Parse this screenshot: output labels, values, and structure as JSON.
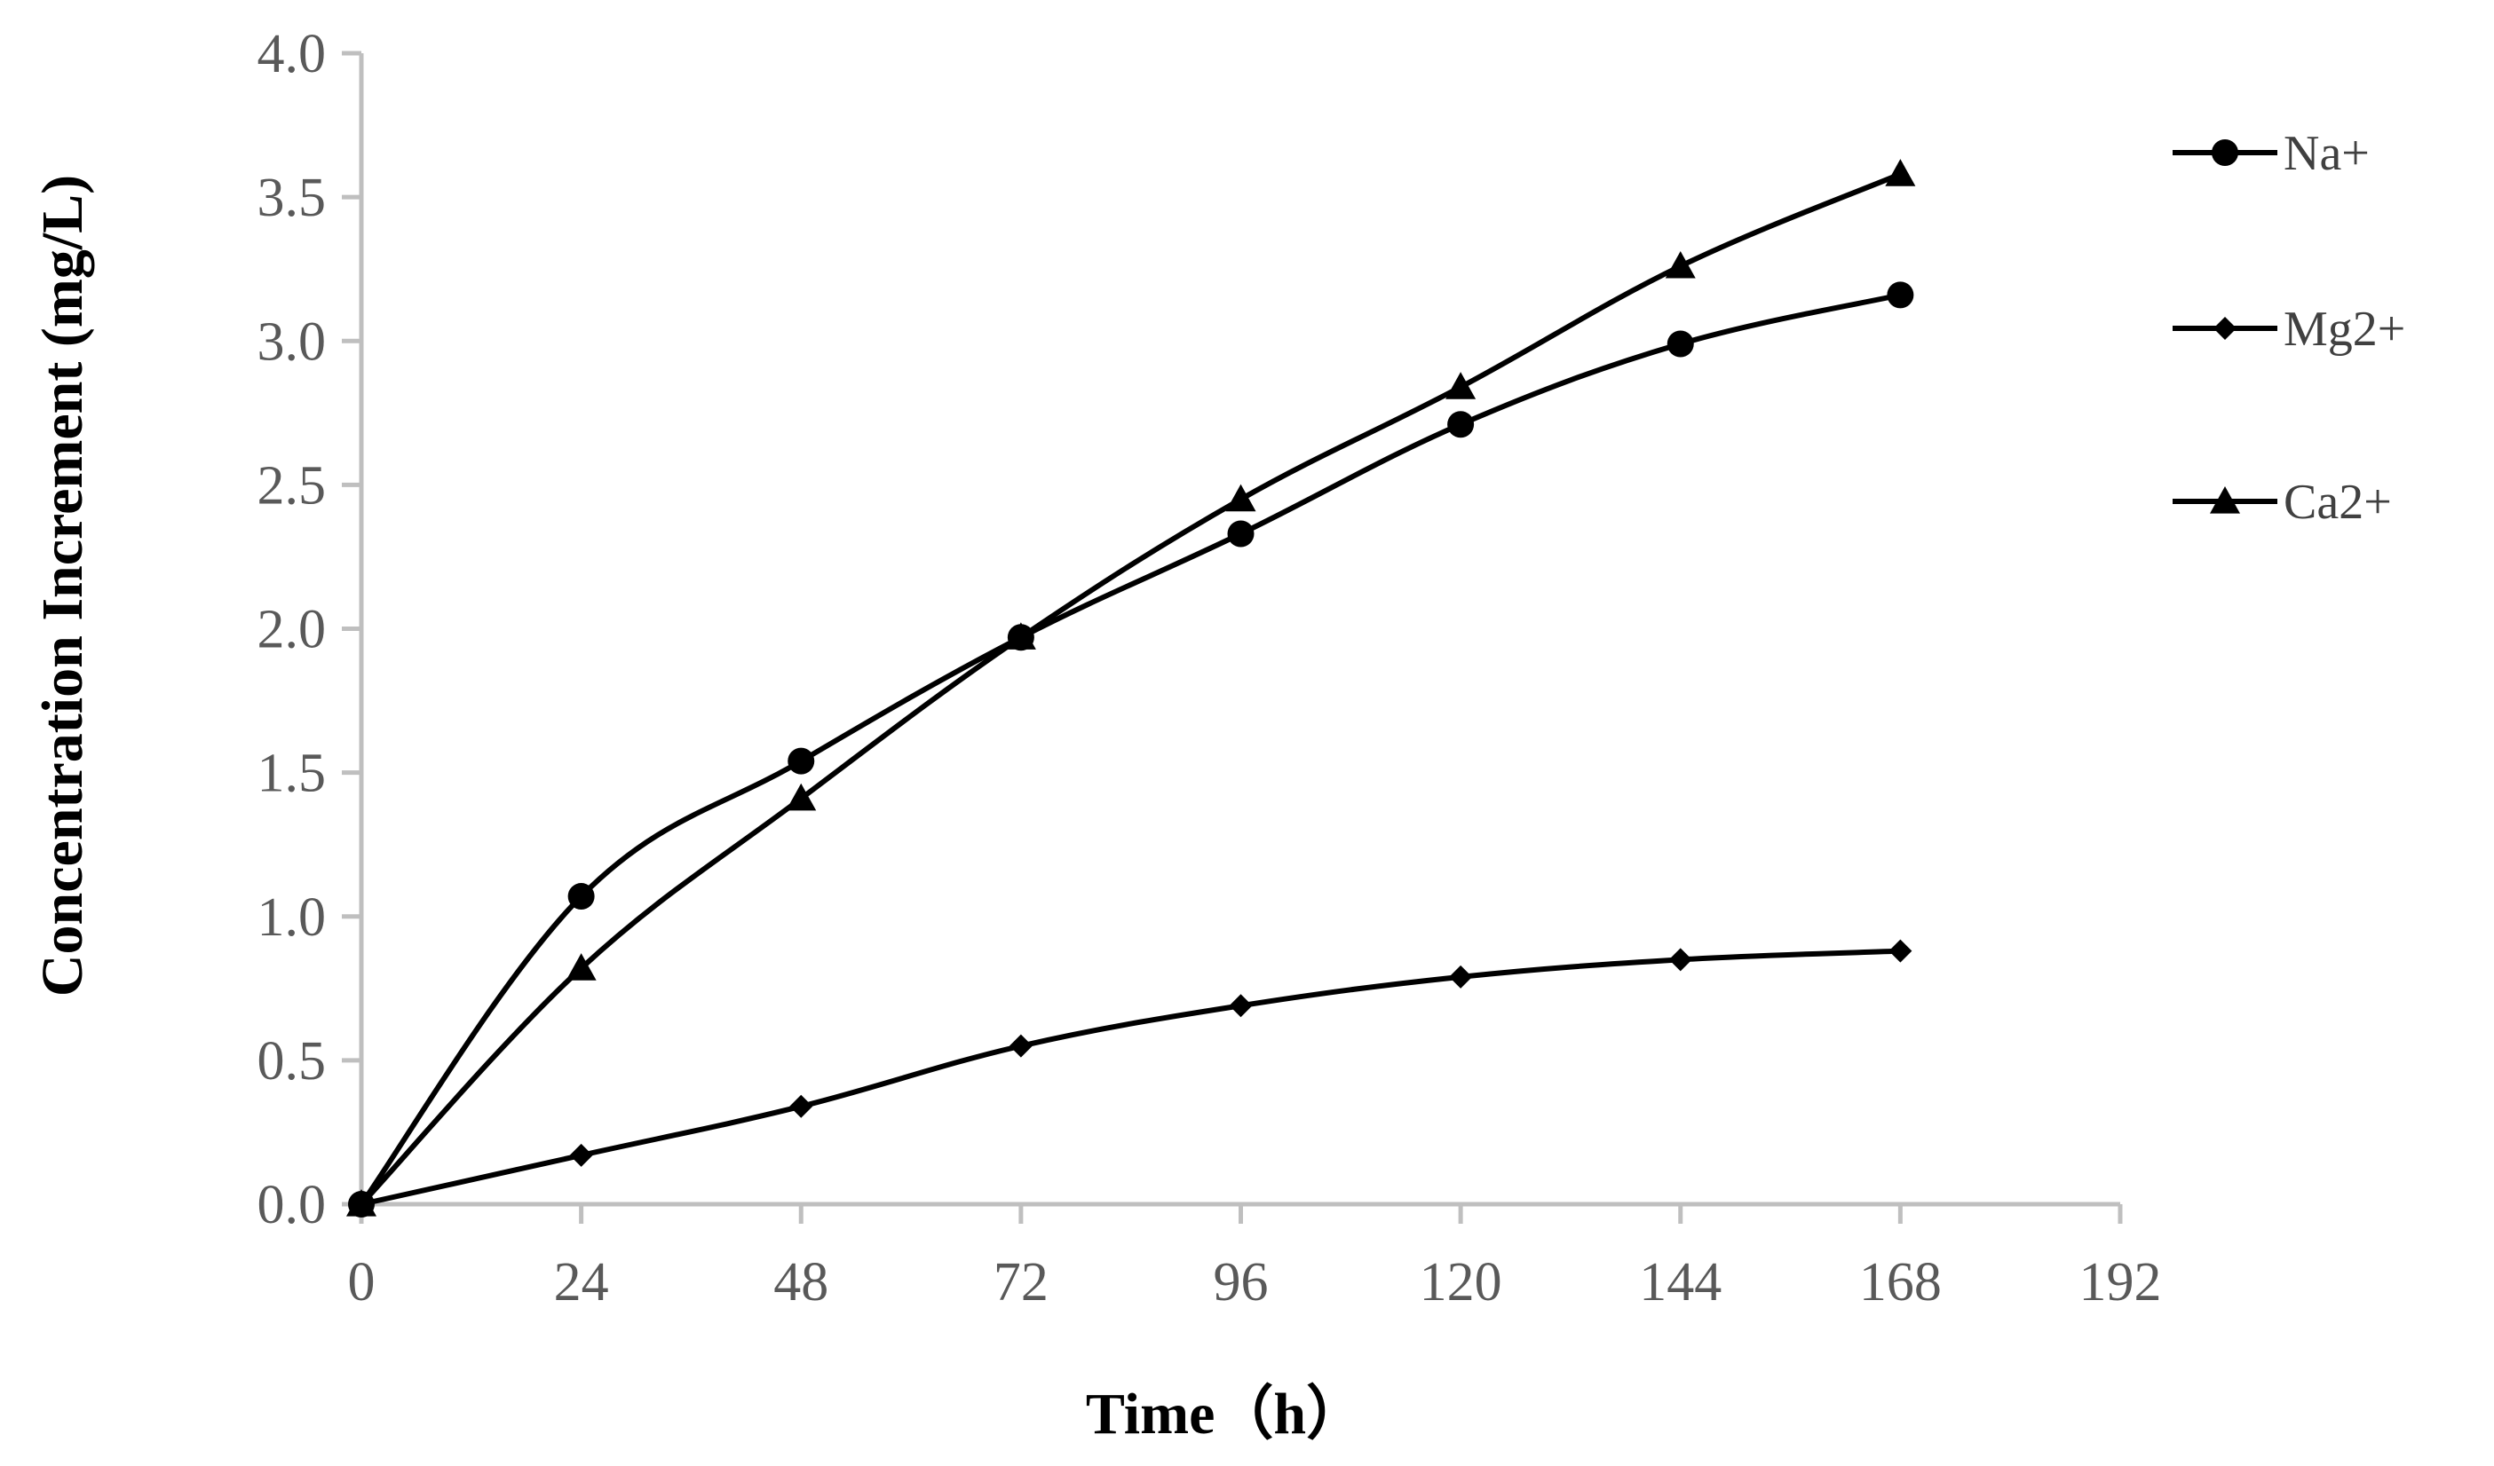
{
  "chart_data": {
    "type": "line",
    "title": "",
    "xlabel": "Time（h）",
    "ylabel": "Concentration Increment (mg/L)",
    "xlim": [
      0,
      192
    ],
    "ylim": [
      0,
      4.0
    ],
    "xticks": [
      0,
      24,
      48,
      72,
      96,
      120,
      144,
      168,
      192
    ],
    "yticks": [
      0.0,
      0.5,
      1.0,
      1.5,
      2.0,
      2.5,
      3.0,
      3.5,
      4.0
    ],
    "ytick_labels": [
      "0.0",
      "0.5",
      "1.0",
      "1.5",
      "2.0",
      "2.5",
      "3.0",
      "3.5",
      "4.0"
    ],
    "grid": false,
    "legend_position": "right",
    "x": [
      0,
      24,
      48,
      72,
      96,
      120,
      144,
      168
    ],
    "series": [
      {
        "name": "Na+",
        "marker": "circle",
        "color": "#000000",
        "values": [
          0.0,
          1.07,
          1.54,
          1.97,
          2.33,
          2.71,
          2.99,
          3.16
        ]
      },
      {
        "name": "Mg2+",
        "marker": "diamond",
        "color": "#000000",
        "values": [
          0.0,
          0.17,
          0.34,
          0.55,
          0.69,
          0.79,
          0.85,
          0.88
        ]
      },
      {
        "name": "Ca2+",
        "marker": "triangle",
        "color": "#000000",
        "values": [
          0.0,
          0.82,
          1.41,
          1.97,
          2.45,
          2.84,
          3.26,
          3.58
        ]
      }
    ]
  }
}
